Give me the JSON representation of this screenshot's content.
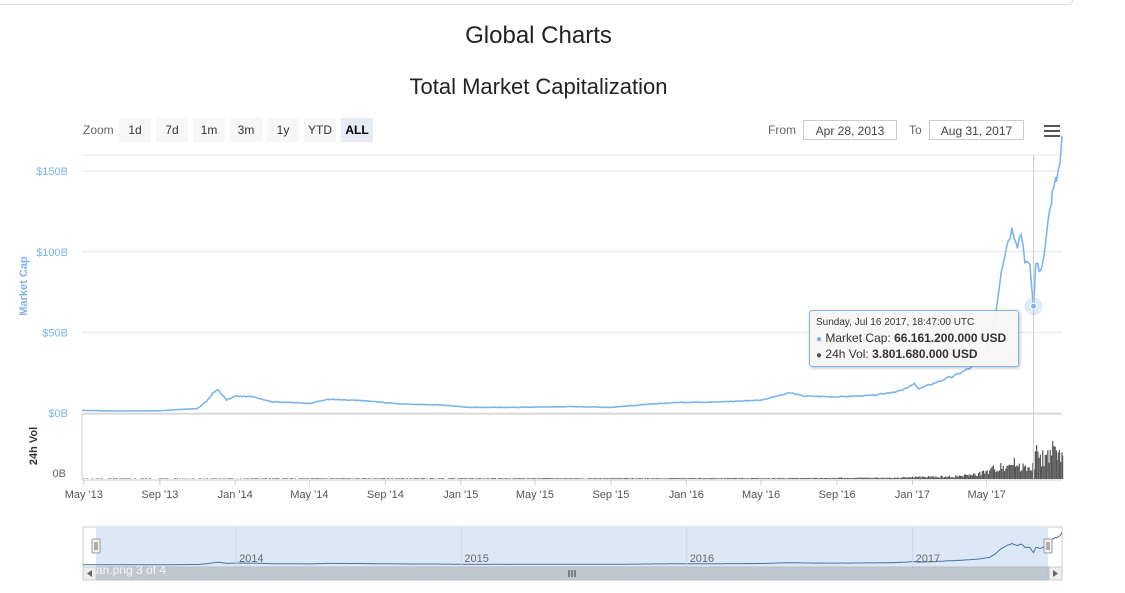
{
  "page": {
    "title": "Global Charts",
    "overlay_text": "an.png 3 of 4"
  },
  "controls": {
    "zoom_label": "Zoom",
    "zoom_buttons": [
      {
        "label": "1d",
        "active": false
      },
      {
        "label": "7d",
        "active": false
      },
      {
        "label": "1m",
        "active": false
      },
      {
        "label": "3m",
        "active": false
      },
      {
        "label": "1y",
        "active": false
      },
      {
        "label": "YTD",
        "active": false
      },
      {
        "label": "ALL",
        "active": true
      }
    ],
    "from_label": "From",
    "from_value": "Apr 28, 2013",
    "to_label": "To",
    "to_value": "Aug 31, 2017",
    "menu_icon": "hamburger-menu-icon"
  },
  "tooltip": {
    "date": "Sunday, Jul 16 2017, 18:47:00 UTC",
    "market_cap_label": "Market Cap:",
    "market_cap_value": "66.161.200.000 USD",
    "volume_label": "24h Vol:",
    "volume_value": "3.801.680.000 USD"
  },
  "colors": {
    "market_cap": "#7cb5ec",
    "volume": "#555555",
    "navigator_fill": "#dde8f7",
    "grid": "#e6e6e6"
  },
  "chart_data": {
    "type": "line",
    "title": "Total Market Capitalization",
    "y_axis_market_cap": {
      "label": "Market Cap",
      "ticks": [
        "$0B",
        "$50B",
        "$100B",
        "$150B"
      ],
      "range": [
        0,
        160
      ]
    },
    "y_axis_volume": {
      "label": "24h Vol",
      "ticks": [
        "0B"
      ]
    },
    "x_axis": {
      "range": [
        "2013-04-28",
        "2017-08-31"
      ],
      "ticks": [
        "May '13",
        "Sep '13",
        "Jan '14",
        "May '14",
        "Sep '14",
        "Jan '15",
        "May '15",
        "Sep '15",
        "Jan '16",
        "May '16",
        "Sep '16",
        "Jan '17",
        "May '17"
      ]
    },
    "navigator_labels": [
      "2014",
      "2015",
      "2016",
      "2017"
    ],
    "series": [
      {
        "name": "Market Cap",
        "unit": "billion USD",
        "points": [
          [
            "2013-04-28",
            1.6
          ],
          [
            "2013-07-01",
            1.2
          ],
          [
            "2013-09-01",
            1.4
          ],
          [
            "2013-11-01",
            2.8
          ],
          [
            "2013-11-15",
            7.0
          ],
          [
            "2013-11-25",
            12.0
          ],
          [
            "2013-12-04",
            14.5
          ],
          [
            "2013-12-18",
            8.0
          ],
          [
            "2014-01-01",
            10.5
          ],
          [
            "2014-02-01",
            10.0
          ],
          [
            "2014-03-01",
            7.0
          ],
          [
            "2014-05-01",
            6.0
          ],
          [
            "2014-06-01",
            8.5
          ],
          [
            "2014-08-01",
            7.5
          ],
          [
            "2014-10-01",
            5.5
          ],
          [
            "2014-12-01",
            5.0
          ],
          [
            "2015-01-15",
            3.5
          ],
          [
            "2015-04-01",
            3.5
          ],
          [
            "2015-07-01",
            4.0
          ],
          [
            "2015-09-01",
            3.5
          ],
          [
            "2015-11-05",
            5.5
          ],
          [
            "2015-12-15",
            6.5
          ],
          [
            "2016-03-01",
            7.0
          ],
          [
            "2016-05-01",
            8.0
          ],
          [
            "2016-06-17",
            12.5
          ],
          [
            "2016-07-10",
            10.5
          ],
          [
            "2016-09-01",
            10.0
          ],
          [
            "2016-11-01",
            11.0
          ],
          [
            "2016-12-15",
            14.0
          ],
          [
            "2017-01-04",
            18.0
          ],
          [
            "2017-01-12",
            15.0
          ],
          [
            "2017-02-15",
            20.0
          ],
          [
            "2017-03-10",
            23.0
          ],
          [
            "2017-03-20",
            25.0
          ],
          [
            "2017-04-15",
            30.0
          ],
          [
            "2017-05-05",
            40.0
          ],
          [
            "2017-05-15",
            60.0
          ],
          [
            "2017-05-25",
            90.0
          ],
          [
            "2017-06-05",
            108.0
          ],
          [
            "2017-06-12",
            115.0
          ],
          [
            "2017-06-20",
            105.0
          ],
          [
            "2017-06-26",
            112.0
          ],
          [
            "2017-07-02",
            96.0
          ],
          [
            "2017-07-10",
            90.0
          ],
          [
            "2017-07-16",
            66.2
          ],
          [
            "2017-07-20",
            95.0
          ],
          [
            "2017-07-25",
            88.0
          ],
          [
            "2017-07-30",
            92.0
          ],
          [
            "2017-08-05",
            110.0
          ],
          [
            "2017-08-15",
            135.0
          ],
          [
            "2017-08-22",
            145.0
          ],
          [
            "2017-08-28",
            155.0
          ],
          [
            "2017-08-31",
            172.0
          ]
        ]
      },
      {
        "name": "24h Vol",
        "unit": "billion USD",
        "points": [
          [
            "2013-04-28",
            0.1
          ],
          [
            "2016-06-01",
            0.2
          ],
          [
            "2016-12-01",
            0.3
          ],
          [
            "2017-01-04",
            0.5
          ],
          [
            "2017-03-01",
            0.6
          ],
          [
            "2017-04-01",
            0.9
          ],
          [
            "2017-05-01",
            1.8
          ],
          [
            "2017-05-25",
            3.5
          ],
          [
            "2017-06-12",
            4.0
          ],
          [
            "2017-07-02",
            3.0
          ],
          [
            "2017-07-16",
            3.8
          ],
          [
            "2017-07-20",
            6.5
          ],
          [
            "2017-08-05",
            5.0
          ],
          [
            "2017-08-15",
            8.5
          ],
          [
            "2017-08-22",
            5.5
          ],
          [
            "2017-08-31",
            6.0
          ]
        ]
      }
    ],
    "crosshair_date": "2017-07-16",
    "grid": true
  }
}
